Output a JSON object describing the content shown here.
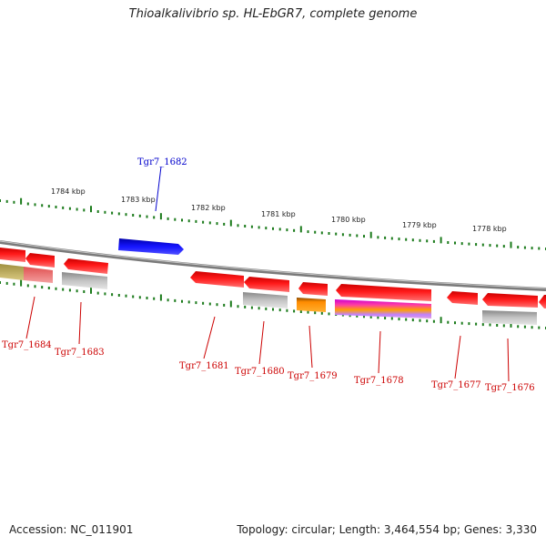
{
  "title": "Thioalkalivibrio sp. HL-EbGR7, complete genome",
  "accession": "Accession: NC_011901",
  "summary": "Topology: circular; Length: 3,464,554 bp; Genes: 3,330",
  "colors": {
    "backbone": "#888888",
    "ticks": "#1a7a1a",
    "gene_red": "#ee0000",
    "gene_blue": "#0000ee",
    "label_red": "#cc0000",
    "label_blue": "#0000cc"
  },
  "kbp_labels": [
    "1784 kbp",
    "1783 kbp",
    "1782 kbp",
    "1781 kbp",
    "1780 kbp",
    "1779 kbp",
    "1778 kbp"
  ],
  "gene_labels": [
    "Tgr7_1682",
    "Tgr7_1684",
    "Tgr7_1683",
    "Tgr7_1681",
    "Tgr7_1680",
    "Tgr7_1679",
    "Tgr7_1678",
    "Tgr7_1677",
    "Tgr7_1676"
  ]
}
